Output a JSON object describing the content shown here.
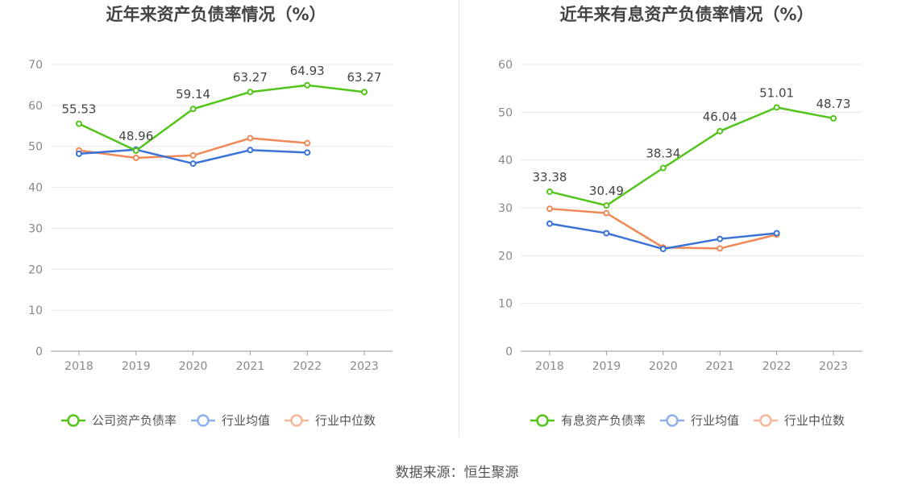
{
  "source_text": "数据来源：恒生聚源",
  "chart_data": [
    {
      "type": "line",
      "title": "近年来资产负债率情况（%）",
      "categories": [
        "2018",
        "2019",
        "2020",
        "2021",
        "2022",
        "2023"
      ],
      "ylim": [
        0,
        70
      ],
      "yticks": [
        0,
        10,
        20,
        30,
        40,
        50,
        60,
        70
      ],
      "grid": true,
      "legend_position": "bottom",
      "series": [
        {
          "name": "公司资产负债率",
          "color": "#52c41a",
          "values": [
            55.53,
            48.96,
            59.14,
            63.27,
            64.93,
            63.27
          ],
          "labels": [
            "55.53",
            "48.96",
            "59.14",
            "63.27",
            "64.93",
            "63.27"
          ]
        },
        {
          "name": "行业均值",
          "color": "#3a72d8",
          "legend_color": "#8fb0ee",
          "values": [
            48.2,
            49.2,
            45.8,
            49.1,
            48.5,
            null
          ]
        },
        {
          "name": "行业中位数",
          "color": "#f08858",
          "legend_color": "#f7b79a",
          "values": [
            49.0,
            47.2,
            47.8,
            52.0,
            50.8,
            null
          ]
        }
      ]
    },
    {
      "type": "line",
      "title": "近年来有息资产负债率情况（%）",
      "categories": [
        "2018",
        "2019",
        "2020",
        "2021",
        "2022",
        "2023"
      ],
      "ylim": [
        0,
        60
      ],
      "yticks": [
        0,
        10,
        20,
        30,
        40,
        50,
        60
      ],
      "grid": true,
      "legend_position": "bottom",
      "series": [
        {
          "name": "有息资产负债率",
          "color": "#52c41a",
          "values": [
            33.38,
            30.49,
            38.34,
            46.04,
            51.01,
            48.73
          ],
          "labels": [
            "33.38",
            "30.49",
            "38.34",
            "46.04",
            "51.01",
            "48.73"
          ]
        },
        {
          "name": "行业均值",
          "color": "#3a72d8",
          "legend_color": "#8fb0ee",
          "values": [
            26.7,
            24.7,
            21.4,
            23.5,
            24.7,
            null
          ]
        },
        {
          "name": "行业中位数",
          "color": "#f08858",
          "legend_color": "#f7b79a",
          "values": [
            29.8,
            28.9,
            21.7,
            21.5,
            24.4,
            null
          ]
        }
      ]
    }
  ]
}
